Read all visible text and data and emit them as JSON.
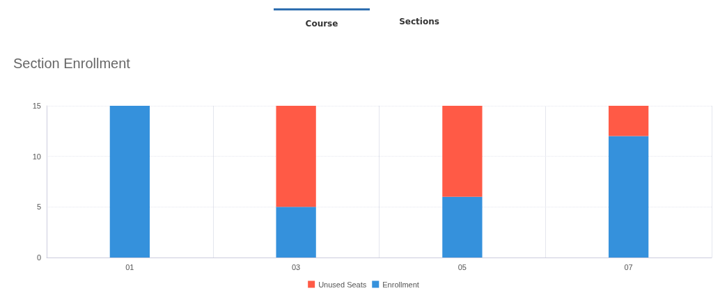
{
  "chart_data": {
    "type": "bar",
    "title": "Section Enrollment",
    "annotations": [
      "Course",
      "Sections"
    ],
    "categories": [
      "01",
      "03",
      "05",
      "07"
    ],
    "series": [
      {
        "name": "Enrollment",
        "color": "#3591dc",
        "values": [
          15,
          5,
          6,
          12
        ]
      },
      {
        "name": "Unused Seats",
        "color": "#ff5a46",
        "values": [
          0,
          10,
          9,
          3
        ]
      }
    ],
    "stacked": true,
    "ylim": [
      0,
      15
    ],
    "yticks": [
      0,
      5,
      10,
      15
    ],
    "grid": true,
    "legend": "bottom"
  }
}
